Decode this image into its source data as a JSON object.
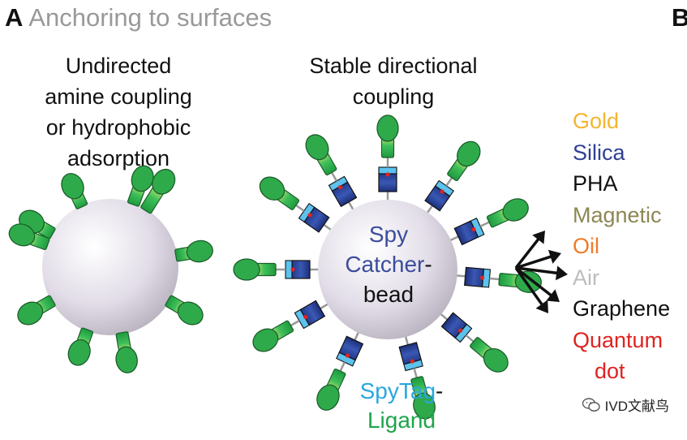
{
  "panel_a": {
    "letter": "A",
    "title": "Anchoring to surfaces"
  },
  "panel_b": {
    "letter": "B"
  },
  "left_heading": [
    "Undirected",
    "amine coupling",
    "or hydrophobic",
    "adsorption"
  ],
  "right_heading": [
    "Stable directional",
    "coupling"
  ],
  "bead_label": {
    "line1": "Spy",
    "line2a": "Catcher",
    "line2b": "-",
    "line3": "bead"
  },
  "spytag_label": {
    "line1a": "SpyTag",
    "line1b": "-",
    "line2": "Ligand"
  },
  "surfaces": [
    {
      "label": "Gold",
      "color": "#f4b52f"
    },
    {
      "label": "Silica",
      "color": "#2f3f93"
    },
    {
      "label": "PHA",
      "color": "#111111"
    },
    {
      "label": "Magnetic",
      "color": "#8c8754"
    },
    {
      "label": "Oil",
      "color": "#f07a2a"
    },
    {
      "label": "Air",
      "color": "#bdbdbd"
    },
    {
      "label": "Graphene",
      "color": "#111111"
    },
    {
      "label": "Quantum",
      "color": "#e0231f"
    },
    {
      "label": "dot",
      "color": "#e0231f"
    }
  ],
  "colors": {
    "catcher_text": "#3a4d9c",
    "spytag_text": "#2aa7de",
    "ligand_text": "#1fa54b",
    "protein": "#2faa4b",
    "catcher_block": "#2e4aa0",
    "tag_block": "#5cc2ee"
  },
  "watermark": {
    "icon": "wechat-icon",
    "text": "IVD文献鸟"
  }
}
